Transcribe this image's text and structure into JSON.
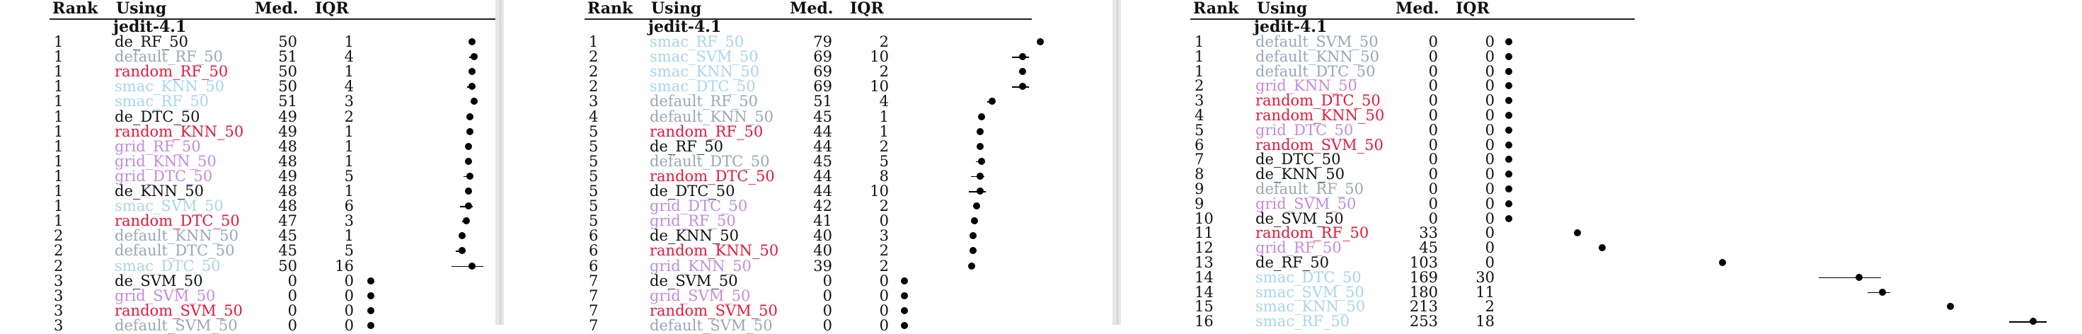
{
  "headers": {
    "rank": "Rank",
    "using": "Using",
    "med": "Med.",
    "iqr": "IQR"
  },
  "colors": {
    "de": "#111111",
    "default": "#9aa7b6",
    "random": "#e8173a",
    "smac": "#a9d6ea",
    "grid": "#c58be0"
  },
  "panels": [
    {
      "dataset": "jedit-4.1",
      "xmin": 0,
      "xmax": 60,
      "rows": [
        {
          "rank": "1",
          "using": "de_RF_50",
          "group": "de",
          "med": 50,
          "iqr": 1
        },
        {
          "rank": "1",
          "using": "default_RF_50",
          "group": "default",
          "med": 51,
          "iqr": 4
        },
        {
          "rank": "1",
          "using": "random_RF_50",
          "group": "random",
          "med": 50,
          "iqr": 1
        },
        {
          "rank": "1",
          "using": "smac_KNN_50",
          "group": "smac",
          "med": 50,
          "iqr": 4
        },
        {
          "rank": "1",
          "using": "smac_RF_50",
          "group": "smac",
          "med": 51,
          "iqr": 3
        },
        {
          "rank": "1",
          "using": "de_DTC_50",
          "group": "de",
          "med": 49,
          "iqr": 2
        },
        {
          "rank": "1",
          "using": "random_KNN_50",
          "group": "random",
          "med": 49,
          "iqr": 1
        },
        {
          "rank": "1",
          "using": "grid_RF_50",
          "group": "grid",
          "med": 48,
          "iqr": 1
        },
        {
          "rank": "1",
          "using": "grid_KNN_50",
          "group": "grid",
          "med": 48,
          "iqr": 1
        },
        {
          "rank": "1",
          "using": "grid_DTC_50",
          "group": "grid",
          "med": 49,
          "iqr": 5
        },
        {
          "rank": "1",
          "using": "de_KNN_50",
          "group": "de",
          "med": 48,
          "iqr": 1
        },
        {
          "rank": "1",
          "using": "smac_SVM_50",
          "group": "smac",
          "med": 48,
          "iqr": 6
        },
        {
          "rank": "1",
          "using": "random_DTC_50",
          "group": "random",
          "med": 47,
          "iqr": 3
        },
        {
          "rank": "2",
          "using": "default_KNN_50",
          "group": "default",
          "med": 45,
          "iqr": 1
        },
        {
          "rank": "2",
          "using": "default_DTC_50",
          "group": "default",
          "med": 45,
          "iqr": 5
        },
        {
          "rank": "2",
          "using": "smac_DTC_50",
          "group": "smac",
          "med": 50,
          "iqr": 16
        },
        {
          "rank": "3",
          "using": "de_SVM_50",
          "group": "de",
          "med": 0,
          "iqr": 0
        },
        {
          "rank": "3",
          "using": "grid_SVM_50",
          "group": "grid",
          "med": 0,
          "iqr": 0
        },
        {
          "rank": "3",
          "using": "random_SVM_50",
          "group": "random",
          "med": 0,
          "iqr": 0
        },
        {
          "rank": "3",
          "using": "default_SVM_50",
          "group": "default",
          "med": 0,
          "iqr": 0
        }
      ]
    },
    {
      "dataset": "jedit-4.1",
      "xmin": 0,
      "xmax": 80,
      "rows": [
        {
          "rank": "1",
          "using": "smac_RF_50",
          "group": "smac",
          "med": 79,
          "iqr": 2
        },
        {
          "rank": "2",
          "using": "smac_SVM_50",
          "group": "smac",
          "med": 69,
          "iqr": 10
        },
        {
          "rank": "2",
          "using": "smac_KNN_50",
          "group": "smac",
          "med": 69,
          "iqr": 2
        },
        {
          "rank": "2",
          "using": "smac_DTC_50",
          "group": "smac",
          "med": 69,
          "iqr": 10
        },
        {
          "rank": "3",
          "using": "default_RF_50",
          "group": "default",
          "med": 51,
          "iqr": 4
        },
        {
          "rank": "4",
          "using": "default_KNN_50",
          "group": "default",
          "med": 45,
          "iqr": 1
        },
        {
          "rank": "5",
          "using": "random_RF_50",
          "group": "random",
          "med": 44,
          "iqr": 1
        },
        {
          "rank": "5",
          "using": "de_RF_50",
          "group": "de",
          "med": 44,
          "iqr": 2
        },
        {
          "rank": "5",
          "using": "default_DTC_50",
          "group": "default",
          "med": 45,
          "iqr": 5
        },
        {
          "rank": "5",
          "using": "random_DTC_50",
          "group": "random",
          "med": 44,
          "iqr": 8
        },
        {
          "rank": "5",
          "using": "de_DTC_50",
          "group": "de",
          "med": 44,
          "iqr": 10
        },
        {
          "rank": "5",
          "using": "grid_DTC_50",
          "group": "grid",
          "med": 42,
          "iqr": 2
        },
        {
          "rank": "5",
          "using": "grid_RF_50",
          "group": "grid",
          "med": 41,
          "iqr": 0
        },
        {
          "rank": "6",
          "using": "de_KNN_50",
          "group": "de",
          "med": 40,
          "iqr": 3
        },
        {
          "rank": "6",
          "using": "random_KNN_50",
          "group": "random",
          "med": 40,
          "iqr": 2
        },
        {
          "rank": "6",
          "using": "grid_KNN_50",
          "group": "grid",
          "med": 39,
          "iqr": 2
        },
        {
          "rank": "7",
          "using": "de_SVM_50",
          "group": "de",
          "med": 0,
          "iqr": 0
        },
        {
          "rank": "7",
          "using": "grid_SVM_50",
          "group": "grid",
          "med": 0,
          "iqr": 0
        },
        {
          "rank": "7",
          "using": "random_SVM_50",
          "group": "random",
          "med": 0,
          "iqr": 0
        },
        {
          "rank": "7",
          "using": "default_SVM_50",
          "group": "default",
          "med": 0,
          "iqr": 0
        }
      ]
    },
    {
      "dataset": "jedit-4.1",
      "xmin": 0,
      "xmax": 260,
      "rows": [
        {
          "rank": "1",
          "using": "default_SVM_50",
          "group": "default",
          "med": 0,
          "iqr": 0
        },
        {
          "rank": "1",
          "using": "default_KNN_50",
          "group": "default",
          "med": 0,
          "iqr": 0
        },
        {
          "rank": "1",
          "using": "default_DTC_50",
          "group": "default",
          "med": 0,
          "iqr": 0
        },
        {
          "rank": "2",
          "using": "grid_KNN_50",
          "group": "grid",
          "med": 0,
          "iqr": 0
        },
        {
          "rank": "3",
          "using": "random_DTC_50",
          "group": "random",
          "med": 0,
          "iqr": 0
        },
        {
          "rank": "4",
          "using": "random_KNN_50",
          "group": "random",
          "med": 0,
          "iqr": 0
        },
        {
          "rank": "5",
          "using": "grid_DTC_50",
          "group": "grid",
          "med": 0,
          "iqr": 0
        },
        {
          "rank": "6",
          "using": "random_SVM_50",
          "group": "random",
          "med": 0,
          "iqr": 0
        },
        {
          "rank": "7",
          "using": "de_DTC_50",
          "group": "de",
          "med": 0,
          "iqr": 0
        },
        {
          "rank": "8",
          "using": "de_KNN_50",
          "group": "de",
          "med": 0,
          "iqr": 0
        },
        {
          "rank": "9",
          "using": "default_RF_50",
          "group": "default",
          "med": 0,
          "iqr": 0
        },
        {
          "rank": "9",
          "using": "grid_SVM_50",
          "group": "grid",
          "med": 0,
          "iqr": 0
        },
        {
          "rank": "10",
          "using": "de_SVM_50",
          "group": "de",
          "med": 0,
          "iqr": 0
        },
        {
          "rank": "11",
          "using": "random_RF_50",
          "group": "random",
          "med": 33,
          "iqr": 0
        },
        {
          "rank": "12",
          "using": "grid_RF_50",
          "group": "grid",
          "med": 45,
          "iqr": 0
        },
        {
          "rank": "13",
          "using": "de_RF_50",
          "group": "de",
          "med": 103,
          "iqr": 0
        },
        {
          "rank": "14",
          "using": "smac_DTC_50",
          "group": "smac",
          "med": 169,
          "iqr": 30
        },
        {
          "rank": "14",
          "using": "smac_SVM_50",
          "group": "smac",
          "med": 180,
          "iqr": 11
        },
        {
          "rank": "15",
          "using": "smac_KNN_50",
          "group": "smac",
          "med": 213,
          "iqr": 2
        },
        {
          "rank": "16",
          "using": "smac_RF_50",
          "group": "smac",
          "med": 253,
          "iqr": 18
        }
      ]
    }
  ]
}
